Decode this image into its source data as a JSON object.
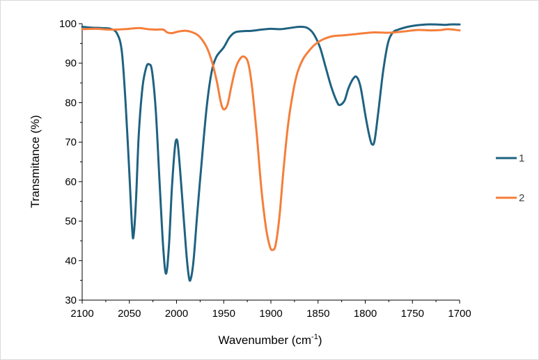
{
  "chart_data": {
    "type": "line",
    "title": "",
    "xlabel": "Wavenumber (cm",
    "xlabel_sup": "-1",
    "xlabel_end": ")",
    "ylabel": "Transmitance (%)",
    "xlim": [
      2100,
      1700
    ],
    "x_reversed": true,
    "ylim": [
      30,
      100
    ],
    "xticks": [
      2100,
      2050,
      2000,
      1950,
      1900,
      1850,
      1800,
      1750,
      1700
    ],
    "yticks": [
      30,
      40,
      50,
      60,
      70,
      80,
      90,
      100
    ],
    "grid": false,
    "legend_position": "right",
    "series": [
      {
        "name": "1",
        "color": "#1f6280",
        "points": [
          [
            2100,
            99.2
          ],
          [
            2090,
            99.0
          ],
          [
            2080,
            98.9
          ],
          [
            2070,
            98.7
          ],
          [
            2063,
            97.5
          ],
          [
            2058,
            93
          ],
          [
            2054,
            80
          ],
          [
            2050,
            62
          ],
          [
            2047,
            48
          ],
          [
            2045.5,
            46.3
          ],
          [
            2043,
            55
          ],
          [
            2040,
            72
          ],
          [
            2036,
            84
          ],
          [
            2032,
            89
          ],
          [
            2029,
            89.7
          ],
          [
            2026,
            88
          ],
          [
            2022,
            78
          ],
          [
            2018,
            60
          ],
          [
            2014,
            43
          ],
          [
            2011,
            36.7
          ],
          [
            2008,
            44
          ],
          [
            2005,
            58
          ],
          [
            2002,
            68
          ],
          [
            2000,
            70.7
          ],
          [
            1998,
            68
          ],
          [
            1994,
            56
          ],
          [
            1990,
            43
          ],
          [
            1987,
            36
          ],
          [
            1985,
            35.3
          ],
          [
            1982,
            40
          ],
          [
            1978,
            52
          ],
          [
            1973,
            66
          ],
          [
            1968,
            79
          ],
          [
            1963,
            87.5
          ],
          [
            1958,
            91.5
          ],
          [
            1950,
            94
          ],
          [
            1944,
            96.5
          ],
          [
            1938,
            97.8
          ],
          [
            1930,
            98.1
          ],
          [
            1920,
            98.2
          ],
          [
            1910,
            98.5
          ],
          [
            1900,
            98.7
          ],
          [
            1890,
            98.6
          ],
          [
            1880,
            98.9
          ],
          [
            1870,
            99.2
          ],
          [
            1862,
            99.0
          ],
          [
            1855,
            97.5
          ],
          [
            1848,
            94
          ],
          [
            1842,
            89
          ],
          [
            1836,
            84
          ],
          [
            1830,
            80.2
          ],
          [
            1827,
            79.4
          ],
          [
            1822,
            80.5
          ],
          [
            1818,
            83.5
          ],
          [
            1813,
            86
          ],
          [
            1809,
            86.5
          ],
          [
            1805,
            84
          ],
          [
            1800,
            77
          ],
          [
            1796,
            72
          ],
          [
            1793,
            69.5
          ],
          [
            1790,
            70.5
          ],
          [
            1786,
            78
          ],
          [
            1781,
            88
          ],
          [
            1776,
            95
          ],
          [
            1771,
            97.7
          ],
          [
            1765,
            98.5
          ],
          [
            1755,
            99.2
          ],
          [
            1745,
            99.6
          ],
          [
            1735,
            99.8
          ],
          [
            1725,
            99.8
          ],
          [
            1715,
            99.7
          ],
          [
            1710,
            99.8
          ],
          [
            1700,
            99.8
          ]
        ]
      },
      {
        "name": "2",
        "color": "#f57e3a",
        "points": [
          [
            2100,
            98.6
          ],
          [
            2085,
            98.7
          ],
          [
            2070,
            98.5
          ],
          [
            2055,
            98.6
          ],
          [
            2040,
            98.9
          ],
          [
            2030,
            98.6
          ],
          [
            2022,
            98.5
          ],
          [
            2014,
            98.5
          ],
          [
            2010,
            97.8
          ],
          [
            2005,
            97.6
          ],
          [
            1998,
            98.0
          ],
          [
            1990,
            98.2
          ],
          [
            1983,
            97.8
          ],
          [
            1976,
            96.8
          ],
          [
            1968,
            94
          ],
          [
            1962,
            90
          ],
          [
            1957,
            85
          ],
          [
            1953,
            80
          ],
          [
            1950,
            78.3
          ],
          [
            1946,
            79.5
          ],
          [
            1942,
            84
          ],
          [
            1937,
            89
          ],
          [
            1932,
            91.3
          ],
          [
            1928,
            91.6
          ],
          [
            1924,
            90
          ],
          [
            1920,
            84
          ],
          [
            1915,
            72
          ],
          [
            1910,
            58
          ],
          [
            1905,
            48
          ],
          [
            1901,
            43.5
          ],
          [
            1898,
            42.7
          ],
          [
            1895,
            44
          ],
          [
            1891,
            51
          ],
          [
            1887,
            62
          ],
          [
            1882,
            74
          ],
          [
            1877,
            82
          ],
          [
            1872,
            87.5
          ],
          [
            1866,
            91
          ],
          [
            1860,
            93
          ],
          [
            1853,
            94.8
          ],
          [
            1845,
            96
          ],
          [
            1835,
            96.8
          ],
          [
            1820,
            97.1
          ],
          [
            1805,
            97.5
          ],
          [
            1790,
            97.8
          ],
          [
            1775,
            97.7
          ],
          [
            1760,
            98.0
          ],
          [
            1745,
            98.4
          ],
          [
            1730,
            98.3
          ],
          [
            1720,
            98.4
          ],
          [
            1712,
            98.6
          ],
          [
            1700,
            98.3
          ]
        ]
      }
    ]
  }
}
